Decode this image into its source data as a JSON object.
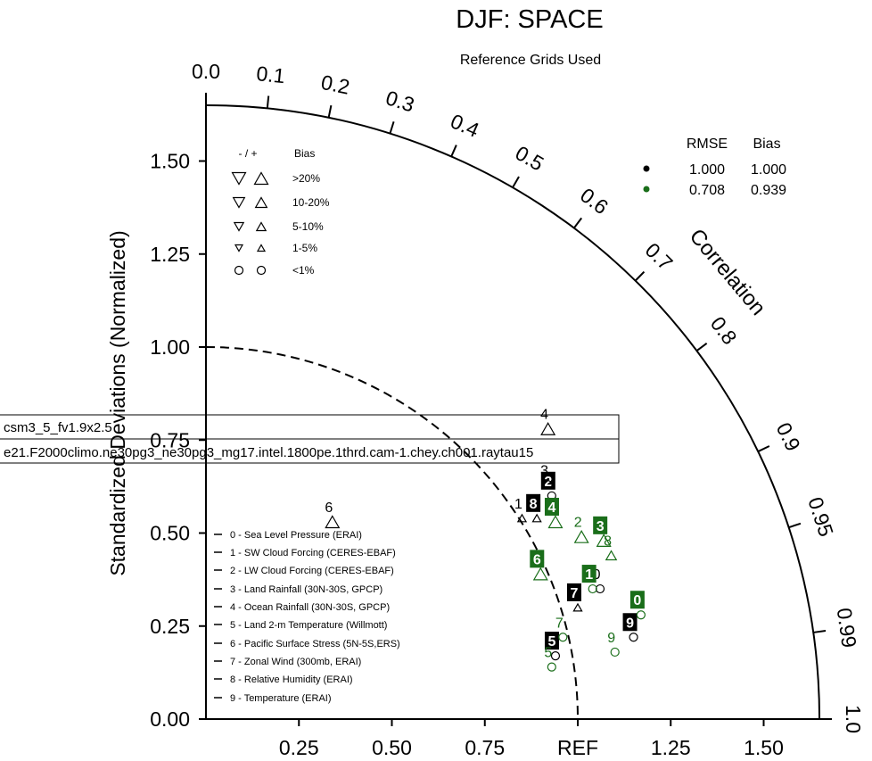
{
  "chart_data": {
    "type": "scatter",
    "title": "DJF: SPACE",
    "subtitle": "Reference Grids Used",
    "ylabel": "Standardized Deviations (Normalized)",
    "corr_label": "Correlation",
    "ref_label": "REF",
    "x_ticks": [
      "0.25",
      "0.50",
      "0.75",
      "1.25",
      "1.50"
    ],
    "y_ticks": [
      "0.00",
      "0.25",
      "0.50",
      "0.75",
      "1.00",
      "1.25",
      "1.50"
    ],
    "corr_ticks": [
      "0.0",
      "0.1",
      "0.2",
      "0.3",
      "0.4",
      "0.5",
      "0.6",
      "0.7",
      "0.8",
      "0.9",
      "0.95",
      "0.99",
      "1.0"
    ],
    "axis_max": 1.65,
    "legend_runs": [
      "csm3_5_fv1.9x2.5",
      "e21.F2000climo.ne30pg3_ne30pg3_mg17.intel.1800pe.1thrd.cam-1.chey.ch001.raytau15"
    ],
    "bias_legend": {
      "header_sign": "- / +",
      "header_bias": "Bias",
      "rows": [
        ">20%",
        "10-20%",
        "5-10%",
        "1-5%",
        "<1%"
      ]
    },
    "stats_table": {
      "headers": [
        "RMSE",
        "Bias"
      ],
      "rows": [
        {
          "color": "#000000",
          "rmse": "1.000",
          "bias": "1.000"
        },
        {
          "color": "#1a6e1a",
          "rmse": "0.708",
          "bias": "0.939"
        }
      ]
    },
    "variables": [
      "0 - Sea Level Pressure (ERAI)",
      "1 - SW Cloud Forcing (CERES-EBAF)",
      "2 - LW Cloud Forcing (CERES-EBAF)",
      "3 - Land Rainfall (30N-30S, GPCP)",
      "4 - Ocean Rainfall (30N-30S, GPCP)",
      "5 - Land 2-m Temperature (Willmott)",
      "6 - Pacific Surface Stress (5N-5S,ERS)",
      "7 - Zonal Wind (300mb, ERAI)",
      "8 - Relative Humidity (ERAI)",
      "9 - Temperature (ERAI)"
    ],
    "series": [
      {
        "color": "#000000",
        "points": [
          {
            "id": "0",
            "x": 1.06,
            "y": 0.35,
            "marker": "circle"
          },
          {
            "id": "1",
            "x": 0.85,
            "y": 0.54,
            "marker": "tri-up-small"
          },
          {
            "id": "2",
            "x": 0.93,
            "y": 0.6,
            "marker": "circle"
          },
          {
            "id": "3",
            "x": 0.92,
            "y": 0.63,
            "marker": "circle"
          },
          {
            "id": "4",
            "x": 0.92,
            "y": 0.78,
            "marker": "tri-up-large"
          },
          {
            "id": "5",
            "x": 0.94,
            "y": 0.17,
            "marker": "circle"
          },
          {
            "id": "6",
            "x": 0.34,
            "y": 0.53,
            "marker": "tri-up-large"
          },
          {
            "id": "7",
            "x": 1.0,
            "y": 0.3,
            "marker": "tri-up-small"
          },
          {
            "id": "8",
            "x": 0.89,
            "y": 0.54,
            "marker": "tri-up-small"
          },
          {
            "id": "9",
            "x": 1.15,
            "y": 0.22,
            "marker": "circle"
          }
        ]
      },
      {
        "color": "#1a6e1a",
        "points": [
          {
            "id": "0",
            "x": 1.17,
            "y": 0.28,
            "marker": "circle"
          },
          {
            "id": "1",
            "x": 1.04,
            "y": 0.35,
            "marker": "circle"
          },
          {
            "id": "2",
            "x": 1.01,
            "y": 0.49,
            "marker": "tri-up-large"
          },
          {
            "id": "3",
            "x": 1.07,
            "y": 0.48,
            "marker": "tri-up-large"
          },
          {
            "id": "4",
            "x": 0.94,
            "y": 0.53,
            "marker": "tri-up-large"
          },
          {
            "id": "5",
            "x": 0.93,
            "y": 0.14,
            "marker": "circle"
          },
          {
            "id": "6",
            "x": 0.9,
            "y": 0.39,
            "marker": "tri-up-large"
          },
          {
            "id": "7",
            "x": 0.96,
            "y": 0.22,
            "marker": "circle"
          },
          {
            "id": "8",
            "x": 1.09,
            "y": 0.44,
            "marker": "tri-up-mid"
          },
          {
            "id": "9",
            "x": 1.1,
            "y": 0.18,
            "marker": "circle"
          }
        ]
      }
    ],
    "boxed_labels": [
      {
        "series": 0,
        "id": "2"
      },
      {
        "series": 0,
        "id": "5"
      },
      {
        "series": 0,
        "id": "7"
      },
      {
        "series": 0,
        "id": "8"
      },
      {
        "series": 0,
        "id": "9"
      },
      {
        "series": 1,
        "id": "0"
      },
      {
        "series": 1,
        "id": "1"
      },
      {
        "series": 1,
        "id": "3"
      },
      {
        "series": 1,
        "id": "4"
      },
      {
        "series": 1,
        "id": "6"
      }
    ]
  }
}
